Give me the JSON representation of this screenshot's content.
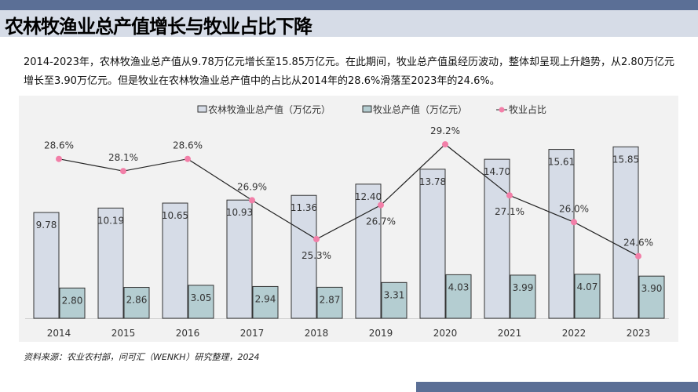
{
  "title": "农林牧渔业总产值增长与牧业占比下降",
  "description": "2014-2023年，农林牧渔业总产值从9.78万亿元增长至15.85万亿元。在此期间，牧业总产值虽经历波动，整体却呈现上升趋势，从2.80万亿元增长至3.90万亿元。但是牧业在农林牧渔业总产值中的占比从2014年的28.6%滑落至2023年的24.6%。",
  "source": "资料来源：农业农村部，问可汇（WENKH）研究整理，2024",
  "colors": {
    "header": "#5b6f96",
    "titleband": "#d6dce7",
    "bar1": "#d6dce7",
    "bar2": "#b4cdd1",
    "line": "#222222",
    "marker": "#f27fa8"
  },
  "chart_data": {
    "type": "bar+line",
    "categories": [
      "2014",
      "2015",
      "2016",
      "2017",
      "2018",
      "2019",
      "2020",
      "2021",
      "2022",
      "2023"
    ],
    "legend_position": "top",
    "grid": false,
    "series": [
      {
        "name": "农林牧渔业总产值（万亿元）",
        "type": "bar",
        "values": [
          9.78,
          10.19,
          10.65,
          10.93,
          11.36,
          12.4,
          13.78,
          14.7,
          15.61,
          15.85
        ],
        "labels": [
          "9.78",
          "10.19",
          "10.65",
          "10.93",
          "11.36",
          "12.40",
          "13.78",
          "14.70",
          "15.61",
          "15.85"
        ]
      },
      {
        "name": "牧业总产值（万亿元）",
        "type": "bar",
        "values": [
          2.8,
          2.86,
          3.05,
          2.94,
          2.87,
          3.31,
          4.03,
          3.99,
          4.07,
          3.9
        ],
        "labels": [
          "2.80",
          "2.86",
          "3.05",
          "2.94",
          "2.87",
          "3.31",
          "4.03",
          "3.99",
          "4.07",
          "3.90"
        ]
      },
      {
        "name": "牧业占比",
        "type": "line",
        "values": [
          28.6,
          28.1,
          28.6,
          26.9,
          25.3,
          26.7,
          29.2,
          27.1,
          26.0,
          24.6
        ],
        "labels": [
          "28.6%",
          "28.1%",
          "28.6%",
          "26.9%",
          "25.3%",
          "26.7%",
          "29.2%",
          "27.1%",
          "26.0%",
          "24.6%"
        ]
      }
    ]
  }
}
